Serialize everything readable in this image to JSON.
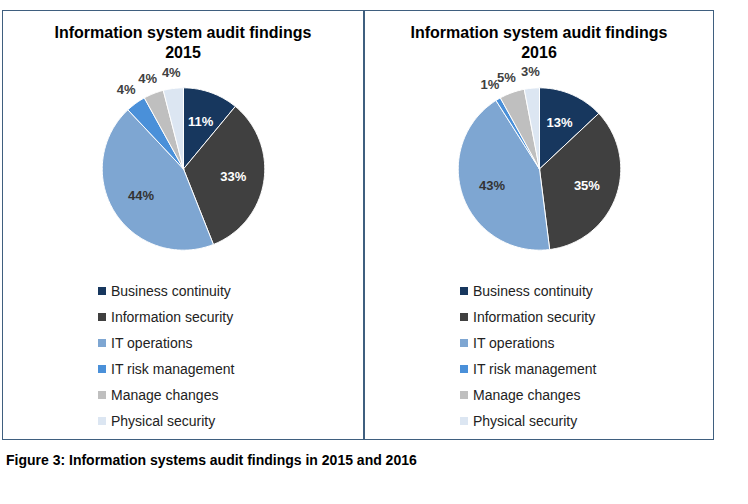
{
  "chart_data": [
    {
      "type": "pie",
      "title": "Information system audit findings 2015",
      "categories": [
        "Business continuity",
        "Information security",
        "IT operations",
        "IT risk management",
        "Manage changes",
        "Physical security"
      ],
      "values": [
        11,
        33,
        44,
        4,
        4,
        4
      ],
      "value_labels": [
        "11%",
        "33%",
        "44%",
        "4%",
        "4%",
        "4%"
      ],
      "colors": [
        "#17375e",
        "#404040",
        "#7ea6d2",
        "#4a90d9",
        "#bfbfbf",
        "#dce6f2"
      ],
      "data_labels": true,
      "legend": "bottom"
    },
    {
      "type": "pie",
      "title": "Information system audit findings 2016",
      "categories": [
        "Business continuity",
        "Information security",
        "IT operations",
        "IT risk management",
        "Manage changes",
        "Physical security"
      ],
      "values": [
        13,
        35,
        43,
        1,
        5,
        3
      ],
      "value_labels": [
        "13%",
        "35%",
        "43%",
        "1%",
        "5%",
        "3%"
      ],
      "colors": [
        "#17375e",
        "#404040",
        "#7ea6d2",
        "#4a90d9",
        "#bfbfbf",
        "#dce6f2"
      ],
      "data_labels": true,
      "legend": "bottom"
    }
  ],
  "caption": "Figure 3: Information systems audit findings in 2015 and 2016"
}
